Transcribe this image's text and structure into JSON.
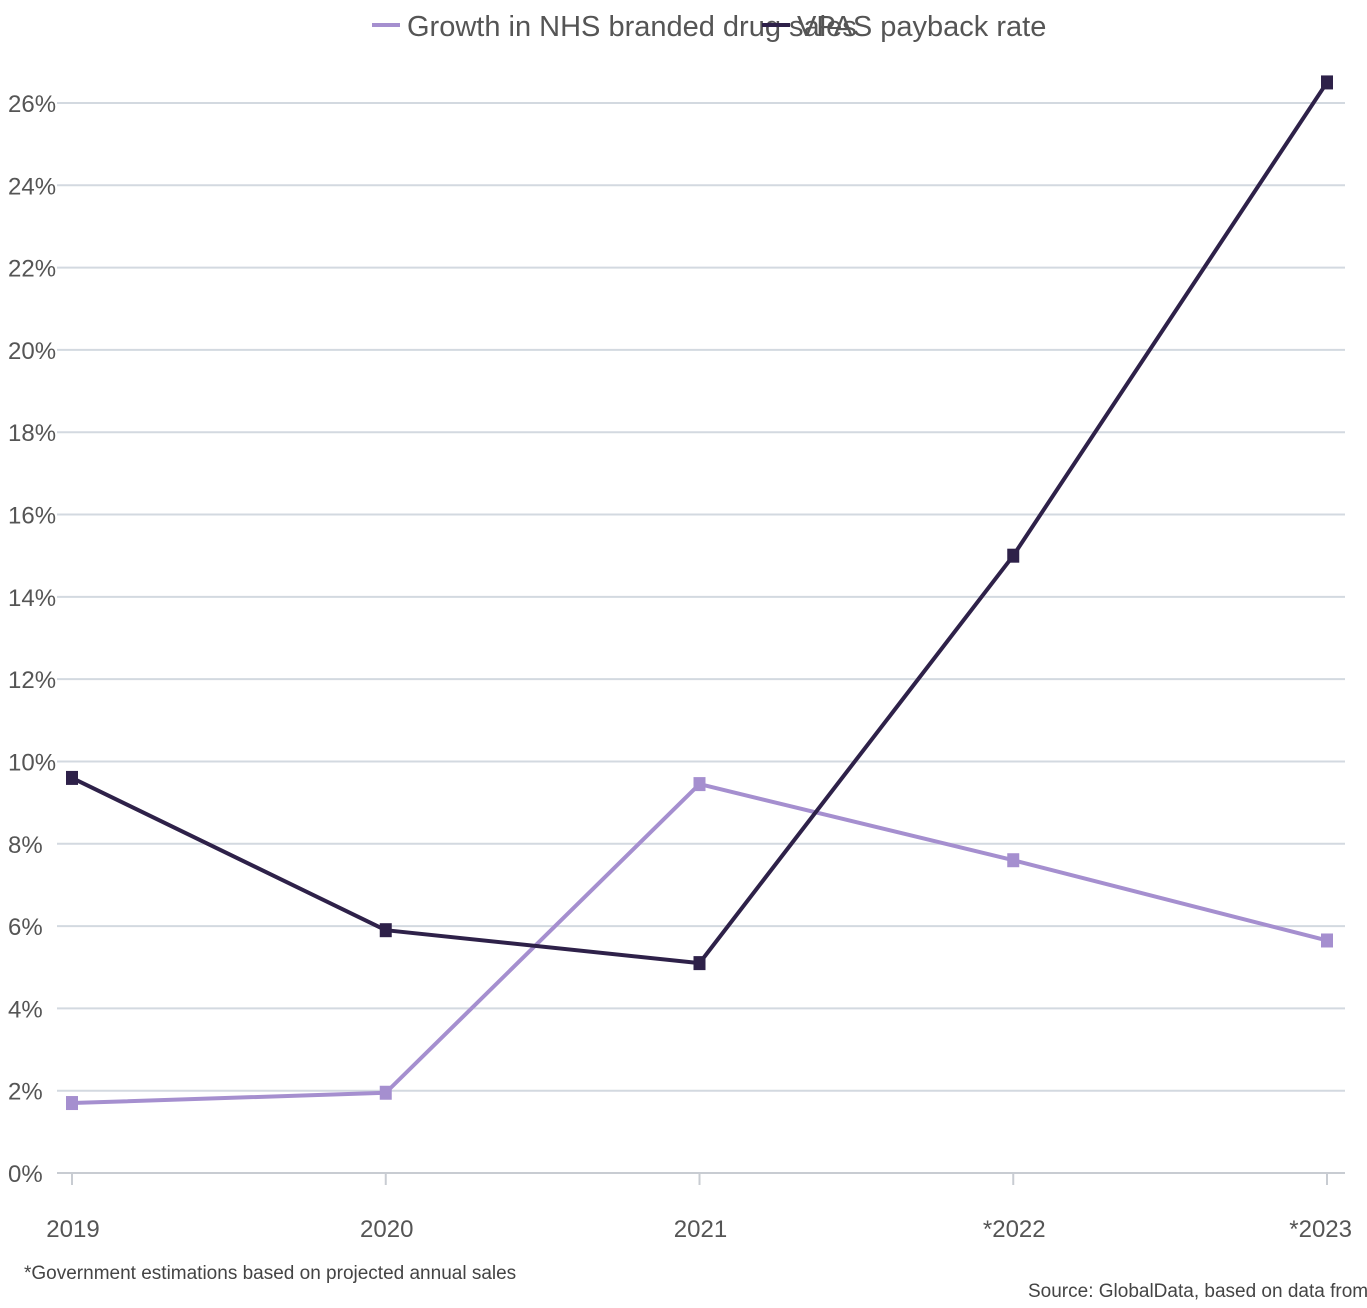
{
  "chart_data": {
    "type": "line",
    "title": "",
    "xlabel": "",
    "ylabel": "",
    "categories": [
      "2019",
      "2020",
      "2021",
      "*2022",
      "*2023"
    ],
    "ylim": [
      0,
      26
    ],
    "yticks": [
      0,
      2,
      4,
      6,
      8,
      10,
      12,
      14,
      16,
      18,
      20,
      22,
      24,
      26
    ],
    "ytick_labels": [
      "0%",
      "2%",
      "4%",
      "6%",
      "8%",
      "10%",
      "12%",
      "14%",
      "16%",
      "18%",
      "20%",
      "22%",
      "24%",
      "26%"
    ],
    "grid": true,
    "legend_position": "top-center",
    "series": [
      {
        "name": "Growth in NHS branded drug sales",
        "color": "#a58fcf",
        "values": [
          1.7,
          1.95,
          9.45,
          7.6,
          5.65
        ]
      },
      {
        "name": "VPAS payback rate",
        "color": "#2e2149",
        "values": [
          9.6,
          5.9,
          5.1,
          15.0,
          26.5
        ]
      }
    ],
    "footnote": "*Government estimations based on projected annual sales",
    "source": "Source: GlobalData, based on data from the DI"
  }
}
